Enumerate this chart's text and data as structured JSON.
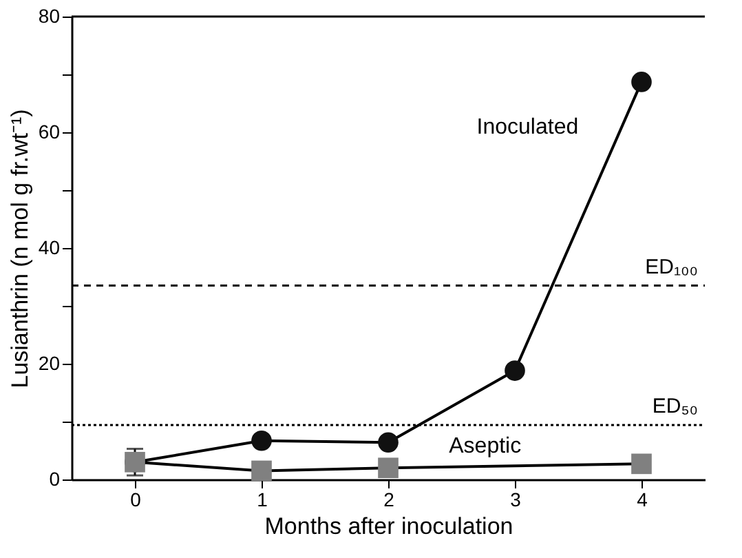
{
  "chart_data": {
    "type": "line",
    "xlabel": "Months after inoculation",
    "ylabel": "Lusianthrin (n mol g fr.wt⁻¹)",
    "xlim": [
      -0.5,
      4.5
    ],
    "xticks": [
      0,
      1,
      2,
      3,
      4
    ],
    "ylim": [
      0,
      80
    ],
    "yticks": [
      0,
      {
        "value": 10,
        "label": null
      },
      20,
      {
        "value": 30,
        "label": null
      },
      40,
      {
        "value": 50,
        "label": null
      },
      60,
      {
        "value": 70,
        "label": null
      },
      80
    ],
    "series": [
      {
        "name": "Inoculated",
        "color": "#111111",
        "marker": "circle",
        "x": [
          0,
          1,
          2,
          3,
          4
        ],
        "values": [
          3.0,
          6.7,
          6.4,
          18.8,
          68.7
        ],
        "errors": [
          2.3,
          null,
          null,
          null,
          null
        ]
      },
      {
        "name": "Aseptic",
        "color": "#808080",
        "marker": "square",
        "x": [
          0,
          1,
          2,
          4
        ],
        "values": [
          3.0,
          1.5,
          2.0,
          2.7
        ]
      }
    ],
    "ref_lines": [
      {
        "axis": "y",
        "value": 33.5,
        "label": "ED₁₀₀",
        "line_style": "dashed",
        "color": "#000000"
      },
      {
        "axis": "y",
        "value": 9.4,
        "label": "ED₅₀",
        "line_style": "dotted",
        "color": "#000000"
      }
    ],
    "grid": false,
    "legend": false,
    "line_style": "solid"
  }
}
